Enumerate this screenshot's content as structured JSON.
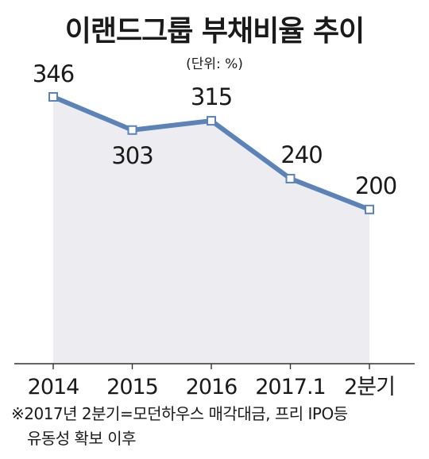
{
  "title": "이랜드그룹 부채비율 추이",
  "unit": "(단위: %)",
  "note": {
    "line1": "※2017년 2분기=모던하우스 매각대금, 프리 IPO등",
    "line2": "유동성 확보 이후"
  },
  "colors": {
    "line": "#5b83b7",
    "area": "#ececf1",
    "marker_fill": "#ffffff",
    "axis": "#333333"
  },
  "chart_data": {
    "type": "area",
    "title": "이랜드그룹 부채비율 추이",
    "unit": "(단위: %)",
    "xlabel": "",
    "ylabel": "",
    "grid": false,
    "legend": "none",
    "categories": [
      "2014",
      "2015",
      "2016",
      "2017.1",
      "2분기"
    ],
    "series": [
      {
        "values": [
          346,
          303,
          315,
          240,
          200
        ]
      }
    ],
    "data_labels": [
      "346",
      "303",
      "315",
      "240",
      "200"
    ],
    "ylim": [
      0,
      370
    ]
  }
}
